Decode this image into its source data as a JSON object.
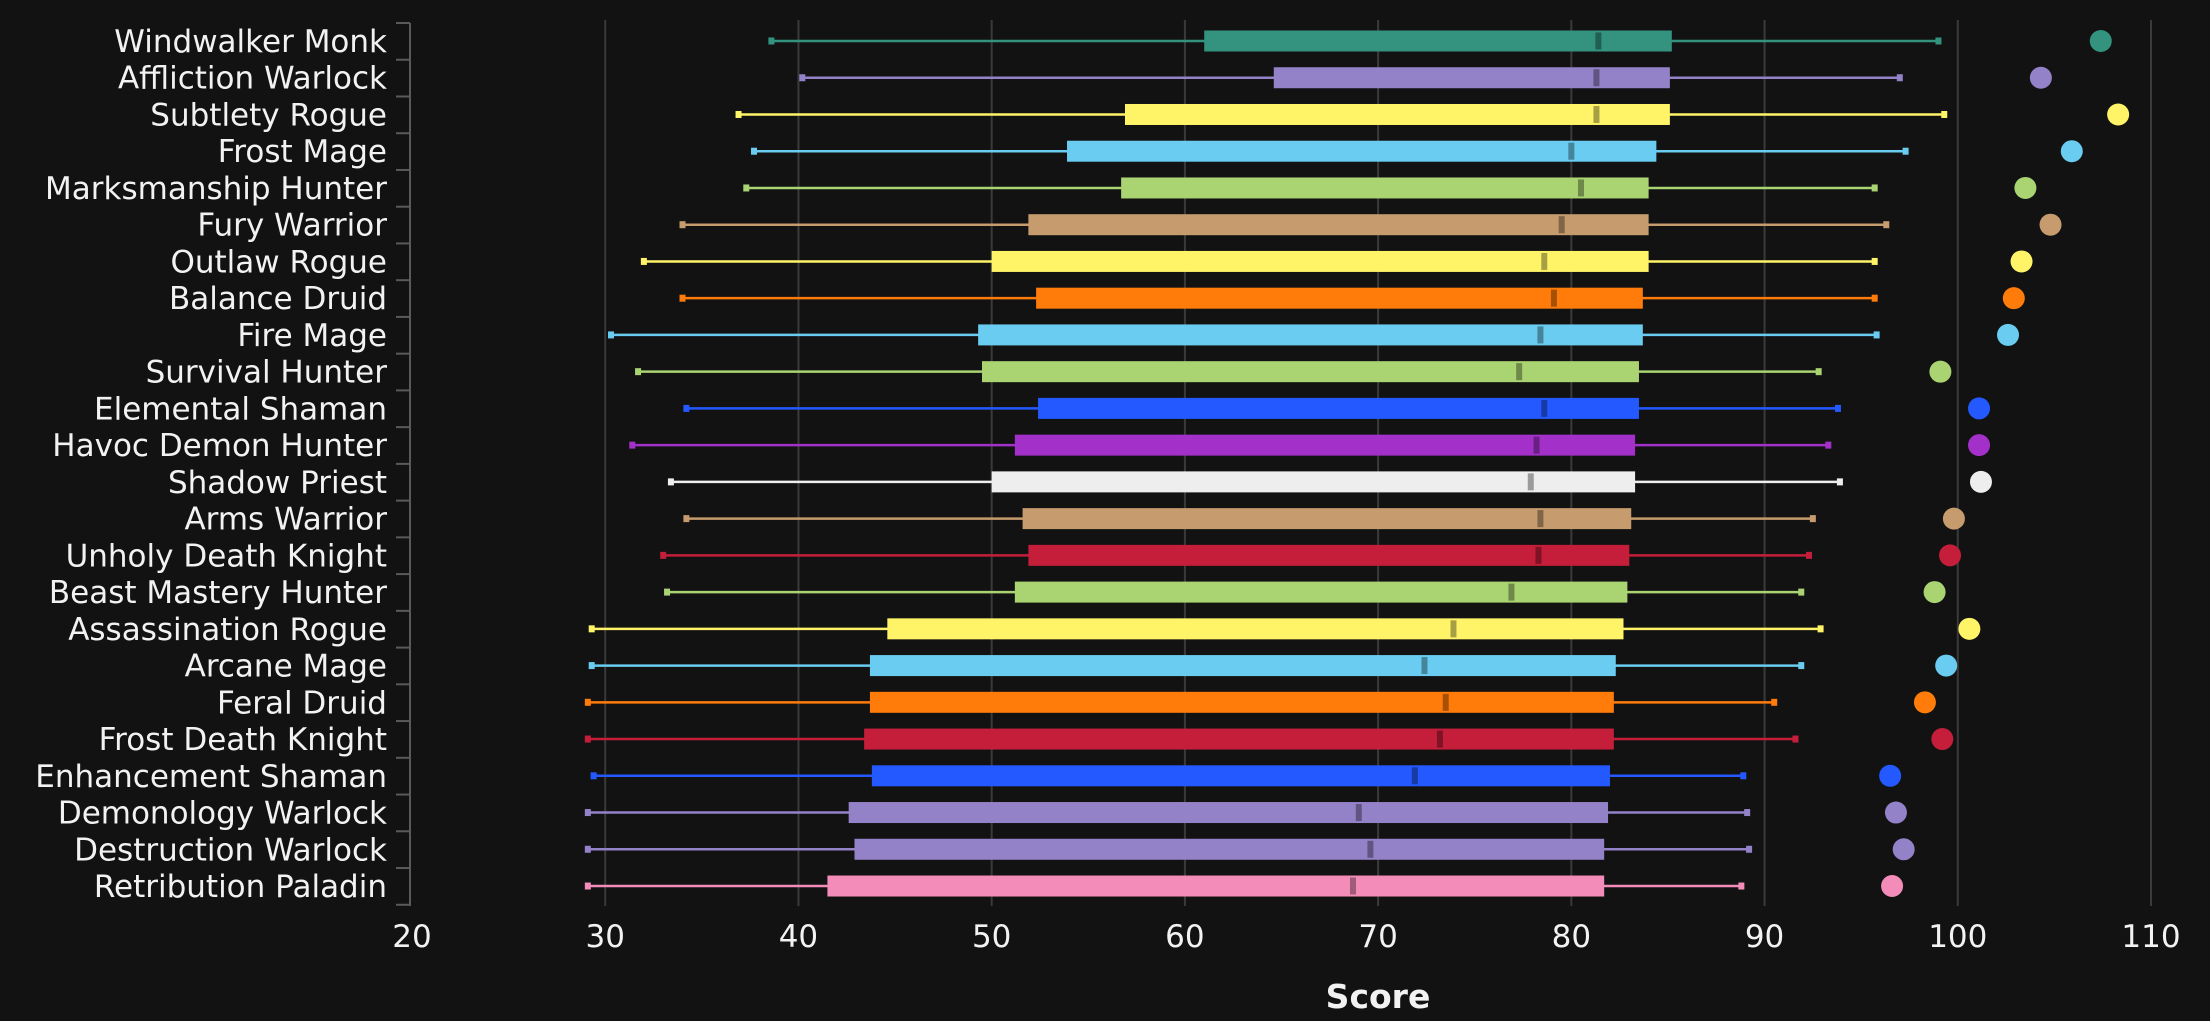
{
  "chart_data": {
    "type": "box",
    "xlabel": "Score",
    "xlim": [
      20,
      110
    ],
    "xticks": [
      20,
      30,
      40,
      50,
      60,
      70,
      80,
      90,
      100,
      110
    ],
    "grid": true,
    "rows": [
      {
        "name": "Windwalker Monk",
        "color": "#33937f",
        "whisker_low": 38.6,
        "q1": 61.0,
        "median": 81.4,
        "q3": 85.2,
        "whisker_high": 99.0,
        "outlier": 107.4
      },
      {
        "name": "Affliction Warlock",
        "color": "#9482c9",
        "whisker_low": 40.2,
        "q1": 64.6,
        "median": 81.3,
        "q3": 85.1,
        "whisker_high": 97.0,
        "outlier": 104.3
      },
      {
        "name": "Subtlety Rogue",
        "color": "#fff468",
        "whisker_low": 36.9,
        "q1": 56.9,
        "median": 81.3,
        "q3": 85.1,
        "whisker_high": 99.3,
        "outlier": 108.3
      },
      {
        "name": "Frost Mage",
        "color": "#69ccf0",
        "whisker_low": 37.7,
        "q1": 53.9,
        "median": 80.0,
        "q3": 84.4,
        "whisker_high": 97.3,
        "outlier": 105.9
      },
      {
        "name": "Marksmanship Hunter",
        "color": "#aad372",
        "whisker_low": 37.3,
        "q1": 56.7,
        "median": 80.5,
        "q3": 84.0,
        "whisker_high": 95.7,
        "outlier": 103.5
      },
      {
        "name": "Fury Warrior",
        "color": "#c69b6d",
        "whisker_low": 34.0,
        "q1": 51.9,
        "median": 79.5,
        "q3": 84.0,
        "whisker_high": 96.3,
        "outlier": 104.8
      },
      {
        "name": "Outlaw Rogue",
        "color": "#fff468",
        "whisker_low": 32.0,
        "q1": 50.0,
        "median": 78.6,
        "q3": 84.0,
        "whisker_high": 95.7,
        "outlier": 103.3
      },
      {
        "name": "Balance Druid",
        "color": "#ff7c0a",
        "whisker_low": 34.0,
        "q1": 52.3,
        "median": 79.1,
        "q3": 83.7,
        "whisker_high": 95.7,
        "outlier": 102.9
      },
      {
        "name": "Fire Mage",
        "color": "#69ccf0",
        "whisker_low": 30.3,
        "q1": 49.3,
        "median": 78.4,
        "q3": 83.7,
        "whisker_high": 95.8,
        "outlier": 102.6
      },
      {
        "name": "Survival Hunter",
        "color": "#aad372",
        "whisker_low": 31.7,
        "q1": 49.5,
        "median": 77.3,
        "q3": 83.5,
        "whisker_high": 92.8,
        "outlier": 99.1
      },
      {
        "name": "Elemental Shaman",
        "color": "#2459ff",
        "whisker_low": 34.2,
        "q1": 52.4,
        "median": 78.6,
        "q3": 83.5,
        "whisker_high": 93.8,
        "outlier": 101.1
      },
      {
        "name": "Havoc Demon Hunter",
        "color": "#a330c9",
        "whisker_low": 31.4,
        "q1": 51.2,
        "median": 78.2,
        "q3": 83.3,
        "whisker_high": 93.3,
        "outlier": 101.1
      },
      {
        "name": "Shadow Priest",
        "color": "#eeeeee",
        "whisker_low": 33.4,
        "q1": 50.0,
        "median": 77.9,
        "q3": 83.3,
        "whisker_high": 93.9,
        "outlier": 101.2
      },
      {
        "name": "Arms Warrior",
        "color": "#c69b6d",
        "whisker_low": 34.2,
        "q1": 51.6,
        "median": 78.4,
        "q3": 83.1,
        "whisker_high": 92.5,
        "outlier": 99.8
      },
      {
        "name": "Unholy Death Knight",
        "color": "#c41e3a",
        "whisker_low": 33.0,
        "q1": 51.9,
        "median": 78.3,
        "q3": 83.0,
        "whisker_high": 92.3,
        "outlier": 99.6
      },
      {
        "name": "Beast Mastery Hunter",
        "color": "#aad372",
        "whisker_low": 33.2,
        "q1": 51.2,
        "median": 76.9,
        "q3": 82.9,
        "whisker_high": 91.9,
        "outlier": 98.8
      },
      {
        "name": "Assassination Rogue",
        "color": "#fff468",
        "whisker_low": 29.3,
        "q1": 44.6,
        "median": 73.9,
        "q3": 82.7,
        "whisker_high": 92.9,
        "outlier": 100.6
      },
      {
        "name": "Arcane Mage",
        "color": "#69ccf0",
        "whisker_low": 29.3,
        "q1": 43.7,
        "median": 72.4,
        "q3": 82.3,
        "whisker_high": 91.9,
        "outlier": 99.4
      },
      {
        "name": "Feral Druid",
        "color": "#ff7c0a",
        "whisker_low": 29.1,
        "q1": 43.7,
        "median": 73.5,
        "q3": 82.2,
        "whisker_high": 90.5,
        "outlier": 98.3
      },
      {
        "name": "Frost Death Knight",
        "color": "#c41e3a",
        "whisker_low": 29.1,
        "q1": 43.4,
        "median": 73.2,
        "q3": 82.2,
        "whisker_high": 91.6,
        "outlier": 99.2
      },
      {
        "name": "Enhancement Shaman",
        "color": "#2459ff",
        "whisker_low": 29.4,
        "q1": 43.8,
        "median": 71.9,
        "q3": 82.0,
        "whisker_high": 88.9,
        "outlier": 96.5
      },
      {
        "name": "Demonology Warlock",
        "color": "#9482c9",
        "whisker_low": 29.1,
        "q1": 42.6,
        "median": 69.0,
        "q3": 81.9,
        "whisker_high": 89.1,
        "outlier": 96.8
      },
      {
        "name": "Destruction Warlock",
        "color": "#9482c9",
        "whisker_low": 29.1,
        "q1": 42.9,
        "median": 69.6,
        "q3": 81.7,
        "whisker_high": 89.2,
        "outlier": 97.2
      },
      {
        "name": "Retribution Paladin",
        "color": "#f48cba",
        "whisker_low": 29.1,
        "q1": 41.5,
        "median": 68.7,
        "q3": 81.7,
        "whisker_high": 88.8,
        "outlier": 96.6
      }
    ]
  }
}
